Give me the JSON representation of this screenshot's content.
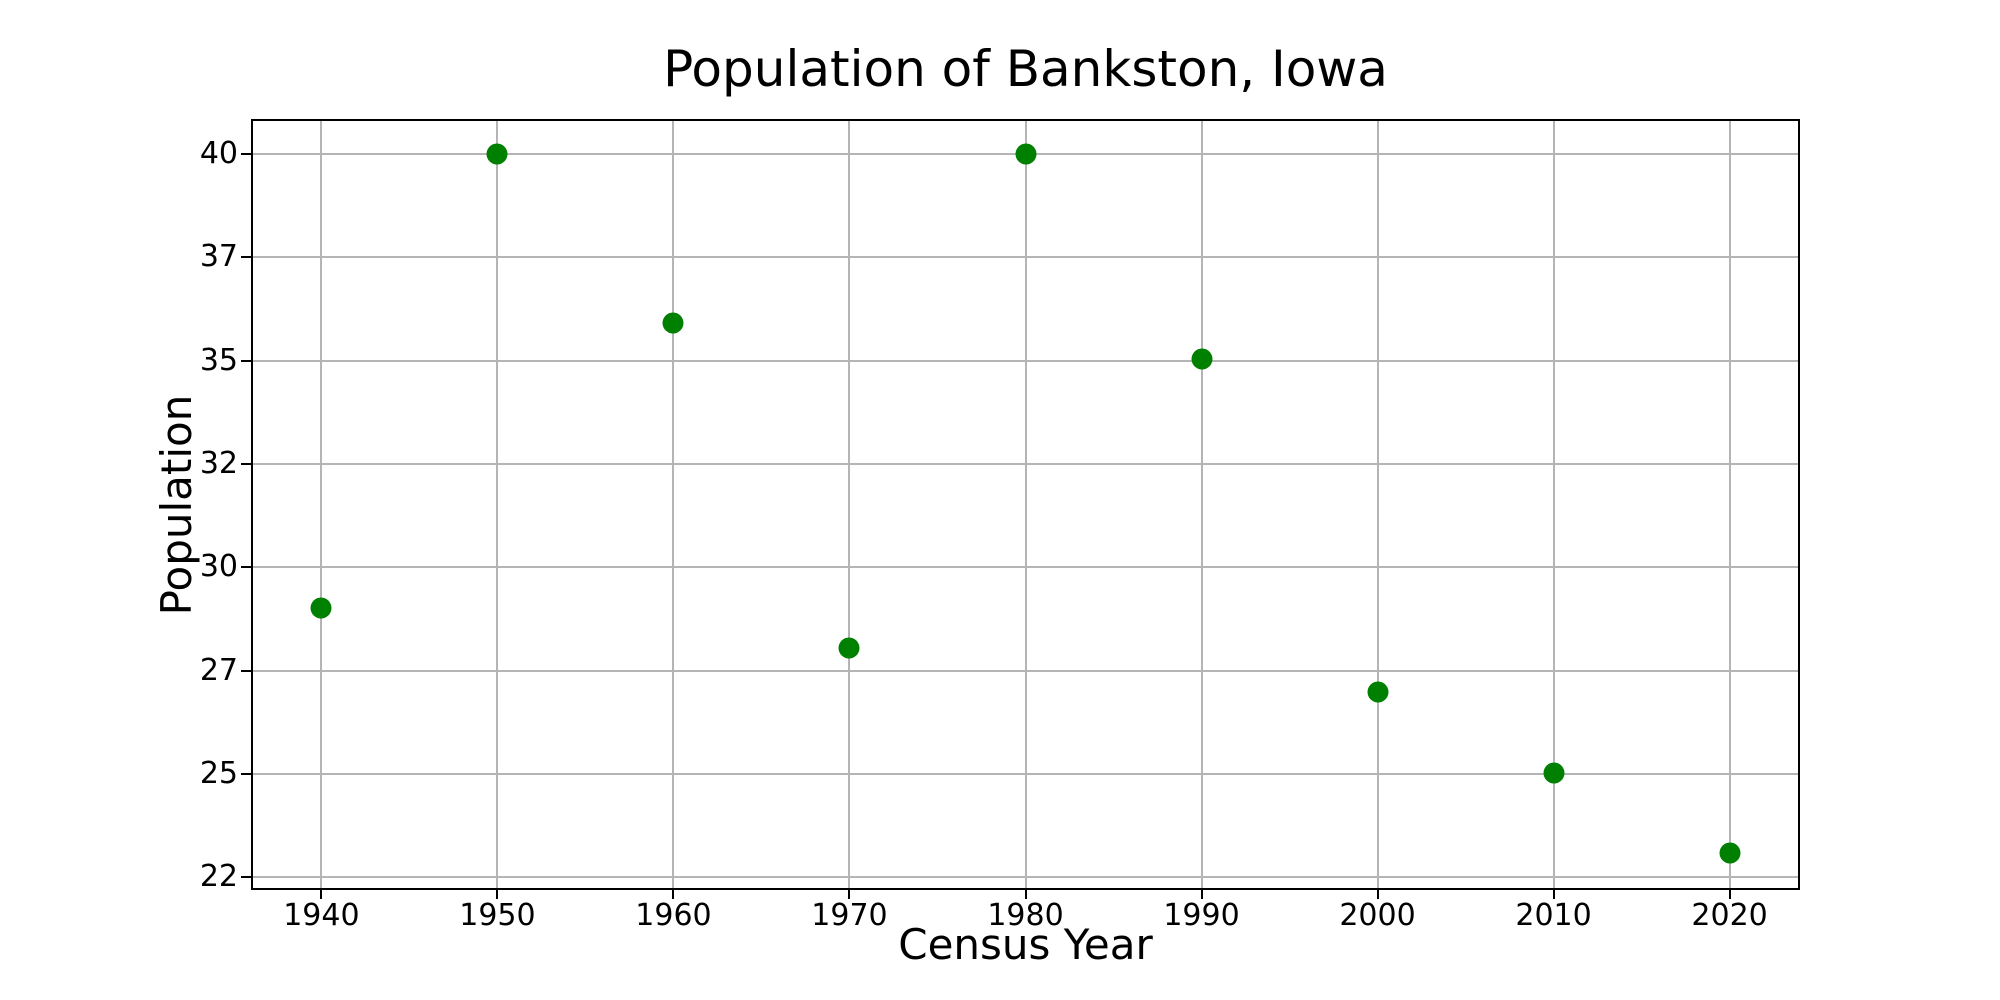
{
  "chart_data": {
    "type": "scatter",
    "title": "Population of Bankston, Iowa",
    "xlabel": "Census Year",
    "ylabel": "Population",
    "x": [
      1940,
      1950,
      1960,
      1970,
      1980,
      1990,
      2000,
      2010,
      2020
    ],
    "values": [
      28.7,
      40.0,
      35.8,
      27.7,
      40.0,
      34.9,
      26.6,
      24.6,
      22.6
    ],
    "x_tick_labels": [
      "1940",
      "1950",
      "1960",
      "1970",
      "1980",
      "1990",
      "2000",
      "2010",
      "2020"
    ],
    "y_tick_values": [
      22,
      24.571,
      27.143,
      29.714,
      32.286,
      34.857,
      37.429,
      40
    ],
    "y_tick_labels": [
      "22",
      "25",
      "27",
      "30",
      "32",
      "35",
      "37",
      "40"
    ],
    "xlim": [
      1936,
      2024
    ],
    "ylim": [
      21.68,
      40.87
    ],
    "grid": true,
    "legend_position": "none",
    "marker_color": "#008000",
    "marker_size_px": 21,
    "grid_color": "#b4b4b4",
    "axis_color": "#000000",
    "text_color": "#000000",
    "background_color": "#ffffff"
  }
}
